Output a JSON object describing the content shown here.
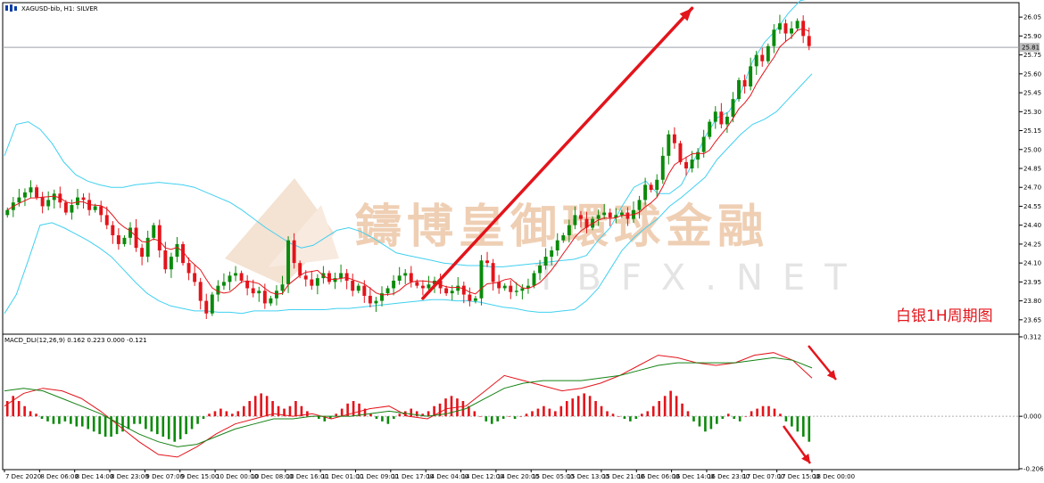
{
  "window": {
    "title": "XAGUSD-bib, H1:  SILVER",
    "icon_name": "candles-icon"
  },
  "watermark": {
    "cn": "鑄博皇御環球金融",
    "en": "TBFX.NET"
  },
  "note": "白银1H周期图",
  "colors": {
    "up": "#0b8a0b",
    "down": "#e3141b",
    "ma": "#e3141b",
    "bands": "#40d0f0",
    "trend": "#e3141b",
    "macd_line": "#148214",
    "signal_line": "#e3141b",
    "price_tag": "#bdbdbd"
  },
  "chart_data": [
    {
      "type": "candlestick",
      "title": "XAGUSD-bib, H1:  SILVER",
      "yticks": [
        "26.05",
        "25.90",
        "25.75",
        "25.60",
        "25.45",
        "25.30",
        "25.15",
        "25.00",
        "24.85",
        "24.70",
        "24.55",
        "24.40",
        "24.25",
        "24.10",
        "23.95",
        "23.80",
        "23.65"
      ],
      "ylim": [
        23.55,
        26.15
      ],
      "current_price": "25.81",
      "series": [
        {
          "name": "close",
          "values": [
            24.52,
            24.58,
            24.62,
            24.66,
            24.7,
            24.62,
            24.55,
            24.6,
            24.65,
            24.58,
            24.5,
            24.56,
            24.62,
            24.6,
            24.52,
            24.55,
            24.48,
            24.4,
            24.32,
            24.25,
            24.3,
            24.38,
            24.22,
            24.15,
            24.3,
            24.4,
            24.2,
            24.05,
            24.15,
            24.25,
            24.1,
            24.02,
            23.95,
            23.8,
            23.7,
            23.85,
            23.92,
            23.95,
            24.0,
            24.02,
            23.96,
            23.9,
            23.86,
            23.88,
            23.78,
            23.82,
            23.88,
            23.93,
            24.28,
            24.1,
            24.0,
            23.97,
            23.92,
            23.98,
            24.02,
            23.95,
            23.98,
            24.02,
            23.96,
            23.88,
            23.92,
            23.84,
            23.78,
            23.8,
            23.86,
            23.9,
            23.96,
            24.0,
            24.02,
            23.95,
            23.92,
            23.9,
            23.93,
            23.96,
            23.9,
            23.86,
            23.88,
            23.92,
            23.85,
            23.8,
            23.82,
            24.12,
            24.1,
            23.95,
            23.9,
            23.92,
            23.87,
            23.88,
            23.9,
            23.92,
            24.02,
            24.08,
            24.15,
            24.2,
            24.28,
            24.32,
            24.4,
            24.48,
            24.45,
            24.38,
            24.45,
            24.48,
            24.5,
            24.46,
            24.48,
            24.5,
            24.45,
            24.52,
            24.6,
            24.72,
            24.68,
            24.76,
            24.95,
            25.12,
            25.05,
            24.9,
            24.85,
            24.92,
            24.98,
            25.1,
            25.22,
            25.3,
            25.2,
            25.26,
            25.4,
            25.55,
            25.5,
            25.66,
            25.75,
            25.7,
            25.82,
            25.95,
            26.0,
            25.92,
            25.96,
            26.02,
            25.9,
            25.82
          ]
        },
        {
          "name": "upper_band",
          "values": [
            24.95,
            25.2,
            25.22,
            25.16,
            25.05,
            24.9,
            24.8,
            24.75,
            24.72,
            24.7,
            24.7,
            24.72,
            24.73,
            24.74,
            24.73,
            24.72,
            24.7,
            24.66,
            24.62,
            24.58,
            24.52,
            24.45,
            24.38,
            24.32,
            24.26,
            24.22,
            24.24,
            24.3,
            24.36,
            24.38,
            24.35,
            24.3,
            24.24,
            24.18,
            24.16,
            24.14,
            24.12,
            24.1,
            24.09,
            24.08,
            24.08,
            24.07,
            24.07,
            24.08,
            24.09,
            24.1,
            24.11,
            24.12,
            24.13,
            24.16,
            24.28,
            24.38,
            24.55,
            24.7,
            24.75,
            24.65,
            24.65,
            24.72,
            24.9,
            25.1,
            25.25,
            25.3,
            25.45,
            25.7,
            25.85,
            25.95,
            26.08,
            26.18,
            26.2
          ]
        },
        {
          "name": "lower_band",
          "values": [
            23.7,
            23.85,
            24.12,
            24.4,
            24.42,
            24.38,
            24.33,
            24.28,
            24.22,
            24.15,
            24.05,
            23.95,
            23.86,
            23.8,
            23.76,
            23.74,
            23.72,
            23.72,
            23.71,
            23.71,
            23.7,
            23.72,
            23.72,
            23.72,
            23.73,
            23.73,
            23.73,
            23.73,
            23.74,
            23.74,
            23.75,
            23.76,
            23.77,
            23.78,
            23.79,
            23.8,
            23.81,
            23.81,
            23.8,
            23.8,
            23.79,
            23.77,
            23.75,
            23.74,
            23.72,
            23.71,
            23.71,
            23.72,
            23.73,
            23.8,
            23.9,
            24.05,
            24.2,
            24.3,
            24.38,
            24.45,
            24.55,
            24.62,
            24.7,
            24.78,
            24.92,
            25.02,
            25.12,
            25.2,
            25.24,
            25.3,
            25.4,
            25.5,
            25.6
          ]
        }
      ],
      "trendline": {
        "x": [
          71,
          117
        ],
        "y": [
          23.82,
          26.12
        ]
      }
    },
    {
      "type": "bar",
      "title": "MACD_DLI(12,26,9) 0.162 0.223 0.000 -0.121",
      "yticks": [
        "0.312",
        "0.000",
        "-0.206"
      ],
      "ylim": [
        -0.206,
        0.312
      ],
      "zero_label": "0.000",
      "series": [
        {
          "name": "histogram",
          "values": [
            0.06,
            0.08,
            0.06,
            0.04,
            0.02,
            0.01,
            -0.01,
            -0.02,
            -0.03,
            -0.03,
            -0.02,
            -0.03,
            -0.04,
            -0.04,
            -0.05,
            -0.06,
            -0.07,
            -0.08,
            -0.08,
            -0.07,
            -0.06,
            -0.05,
            -0.03,
            -0.03,
            -0.05,
            -0.06,
            -0.07,
            -0.08,
            -0.09,
            -0.1,
            -0.09,
            -0.07,
            -0.05,
            -0.03,
            -0.01,
            0.01,
            0.02,
            0.03,
            0.02,
            0.01,
            0.02,
            0.04,
            0.06,
            0.08,
            0.09,
            0.08,
            0.06,
            0.04,
            0.03,
            0.04,
            0.06,
            0.04,
            0.02,
            0.0,
            -0.01,
            -0.02,
            -0.01,
            0.01,
            0.03,
            0.05,
            0.06,
            0.05,
            0.03,
            0.01,
            -0.01,
            -0.02,
            -0.03,
            -0.01,
            0.01,
            0.02,
            0.03,
            0.02,
            0.01,
            0.02,
            0.04,
            0.05,
            0.07,
            0.08,
            0.07,
            0.06,
            0.04,
            0.02,
            0.0,
            -0.02,
            -0.03,
            -0.02,
            -0.01,
            0.0,
            -0.01,
            0.0,
            0.01,
            0.02,
            0.03,
            0.04,
            0.03,
            0.02,
            0.04,
            0.06,
            0.07,
            0.08,
            0.09,
            0.08,
            0.06,
            0.04,
            0.02,
            0.01,
            0.0,
            -0.01,
            -0.02,
            -0.01,
            0.01,
            0.02,
            0.04,
            0.06,
            0.08,
            0.1,
            0.08,
            0.05,
            0.02,
            -0.02,
            -0.04,
            -0.06,
            -0.05,
            -0.03,
            -0.01,
            0.01,
            -0.01,
            -0.02,
            0.0,
            0.02,
            0.03,
            0.04,
            0.04,
            0.03,
            0.01,
            -0.02,
            -0.04,
            -0.06,
            -0.08,
            -0.1
          ]
        },
        {
          "name": "macd_line",
          "values": [
            0.04,
            0.09,
            0.11,
            0.1,
            0.07,
            0.02,
            -0.04,
            -0.1,
            -0.15,
            -0.16,
            -0.12,
            -0.07,
            -0.03,
            -0.01,
            0.01,
            0.0,
            0.01,
            -0.01,
            0.01,
            0.03,
            0.04,
            0.0,
            -0.01,
            0.03,
            0.04,
            0.1,
            0.16,
            0.14,
            0.12,
            0.1,
            0.11,
            0.13,
            0.16,
            0.2,
            0.24,
            0.23,
            0.21,
            0.2,
            0.21,
            0.24,
            0.25,
            0.22,
            0.15
          ]
        },
        {
          "name": "signal_line",
          "values": [
            0.1,
            0.11,
            0.1,
            0.07,
            0.04,
            0.01,
            -0.03,
            -0.07,
            -0.1,
            -0.12,
            -0.11,
            -0.08,
            -0.05,
            -0.03,
            -0.01,
            -0.01,
            0.0,
            0.0,
            0.0,
            0.01,
            0.02,
            0.01,
            0.0,
            0.01,
            0.03,
            0.07,
            0.11,
            0.13,
            0.14,
            0.14,
            0.14,
            0.15,
            0.16,
            0.18,
            0.2,
            0.21,
            0.21,
            0.21,
            0.21,
            0.22,
            0.23,
            0.22,
            0.19
          ]
        }
      ]
    }
  ],
  "x_axis": {
    "labels": [
      "7 Dec 2020",
      "8 Dec 06:00",
      "8 Dec 14:00",
      "8 Dec 23:00",
      "9 Dec 07:00",
      "9 Dec 15:00",
      "10 Dec 00:00",
      "10 Dec 08:00",
      "10 Dec 16:00",
      "11 Dec 01:00",
      "11 Dec 09:00",
      "11 Dec 17:00",
      "14 Dec 04:00",
      "14 Dec 12:00",
      "14 Dec 20:00",
      "15 Dec 05:00",
      "15 Dec 13:00",
      "15 Dec 21:00",
      "16 Dec 06:00",
      "16 Dec 14:00",
      "16 Dec 23:00",
      "17 Dec 07:00",
      "17 Dec 15:00",
      "18 Dec 00:00"
    ]
  }
}
